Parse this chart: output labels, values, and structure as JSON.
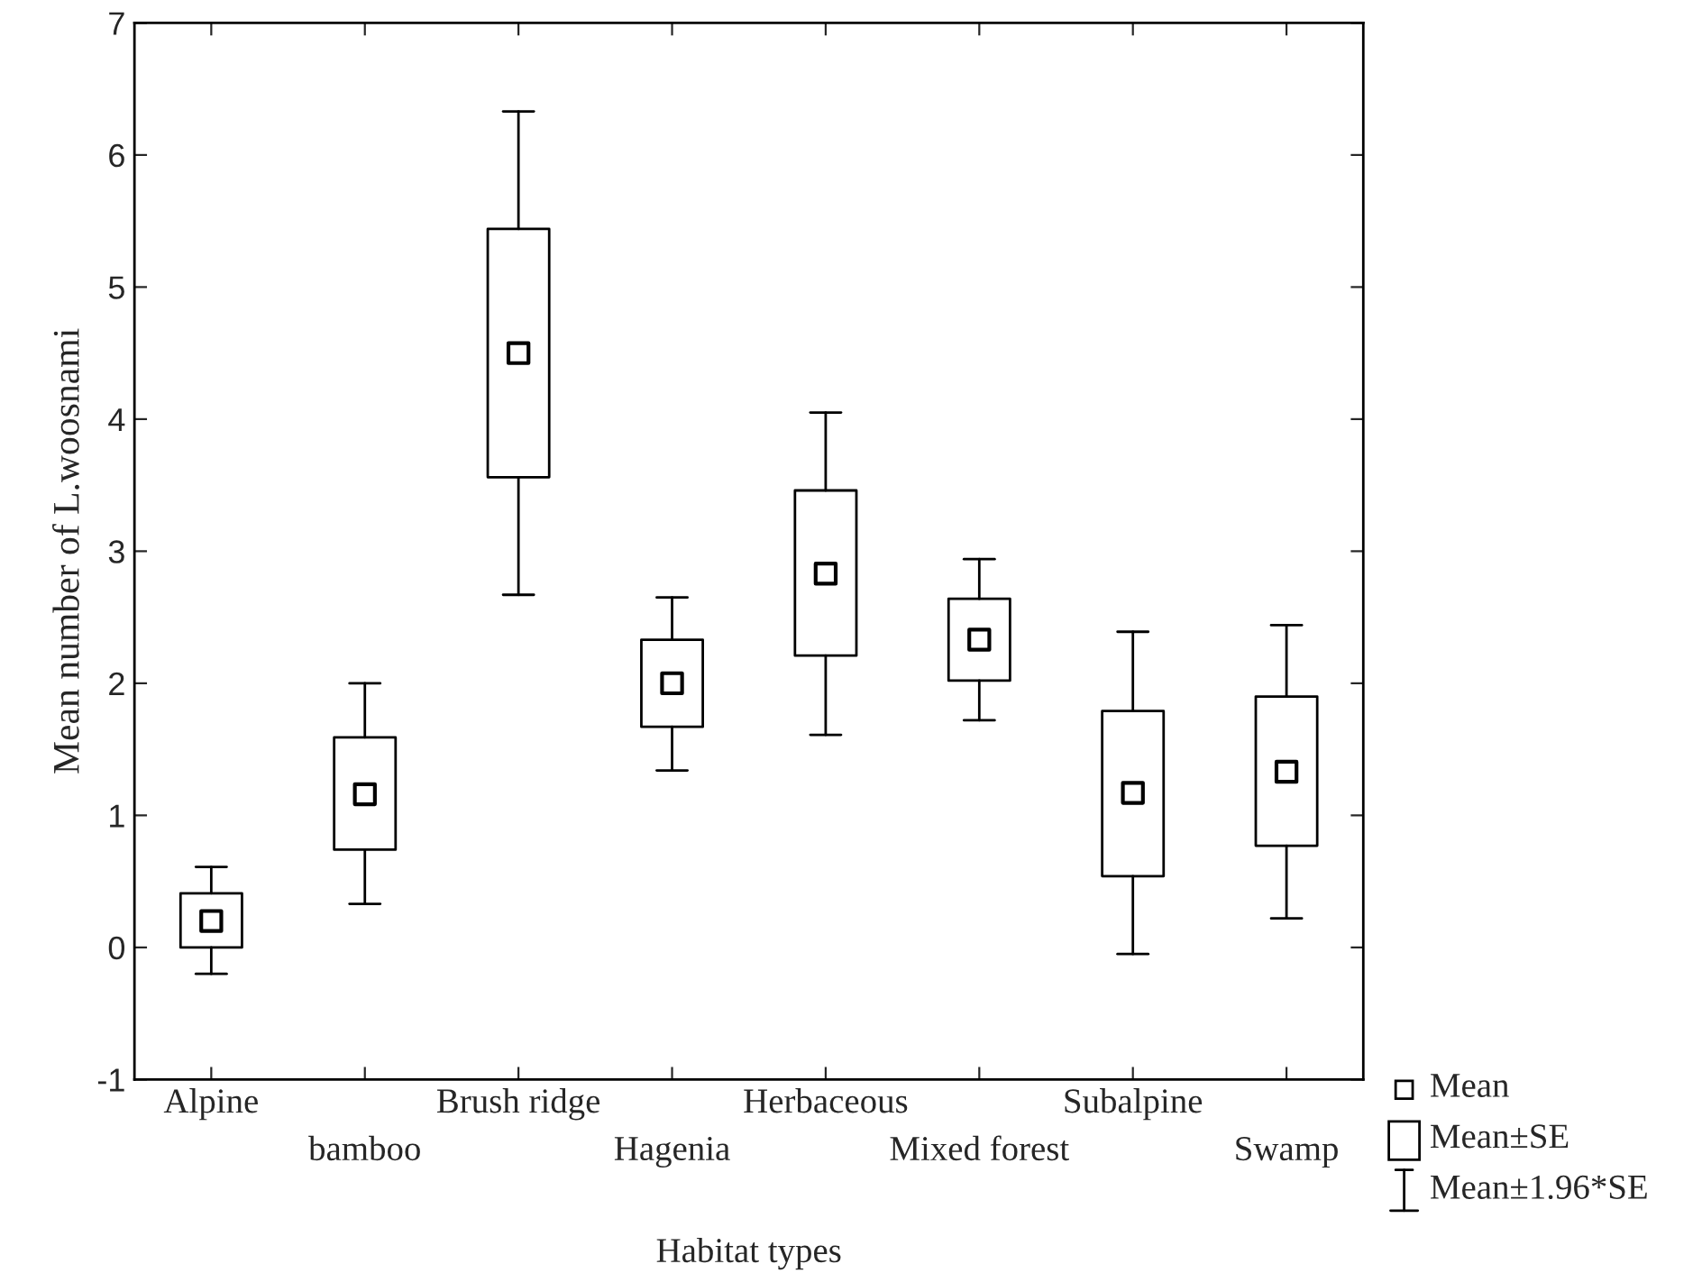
{
  "chart_data": {
    "type": "box",
    "xlabel": "Habitat types",
    "ylabel": "Mean number of L.woosnami",
    "categories": [
      "Alpine",
      "bamboo",
      "Brush ridge",
      "Hagenia",
      "Herbaceous",
      "Mixed forest",
      "Subalpine",
      "Swamp"
    ],
    "boxes": [
      {
        "low": -0.2,
        "q1": 0,
        "median": 0.2,
        "q3": 0.41,
        "high": 0.61
      },
      {
        "low": 0.33,
        "q1": 0.74,
        "median": 1.16,
        "q3": 1.59,
        "high": 2.0
      },
      {
        "low": 2.67,
        "q1": 3.56,
        "median": 4.5,
        "q3": 5.44,
        "high": 6.33
      },
      {
        "low": 1.34,
        "q1": 1.67,
        "median": 2.0,
        "q3": 2.33,
        "high": 2.65
      },
      {
        "low": 1.61,
        "q1": 2.21,
        "median": 2.83,
        "q3": 3.46,
        "high": 4.05
      },
      {
        "low": 1.72,
        "q1": 2.02,
        "median": 2.33,
        "q3": 2.64,
        "high": 2.94
      },
      {
        "low": -0.05,
        "q1": 0.54,
        "median": 1.17,
        "q3": 1.79,
        "high": 2.39
      },
      {
        "low": 0.22,
        "q1": 0.77,
        "median": 1.33,
        "q3": 1.9,
        "high": 2.44
      }
    ],
    "color": "#000000",
    "marker": "square",
    "ylim": [
      -1,
      7
    ],
    "yticks": [
      -1,
      0,
      1,
      2,
      3,
      4,
      5,
      6,
      7
    ],
    "annotations": [
      "Mean",
      "Mean±SE",
      "Mean±1.96*SE"
    ],
    "grid": false
  }
}
